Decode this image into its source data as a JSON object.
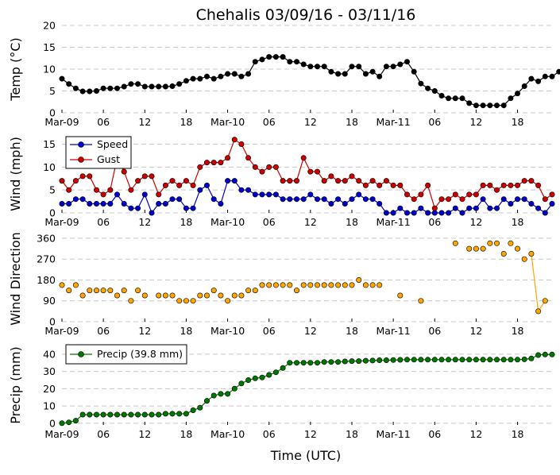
{
  "title": "Chehalis 03/09/16 - 03/11/16",
  "xlabel": "Time (UTC)",
  "x_tick_labels": [
    "Mar-09",
    "06",
    "12",
    "18",
    "Mar-10",
    "06",
    "12",
    "18",
    "Mar-11",
    "06",
    "12",
    "18"
  ],
  "colors": {
    "temp": "#000000",
    "speed": "#0000cc",
    "gust": "#cc0000",
    "direction_marker": "#ffa500",
    "direction_line": "#ffa500",
    "precip": "#007700",
    "grid": "#c8c8c8"
  },
  "chart_data": [
    {
      "type": "line",
      "ylabel": "Temp (°C)",
      "ylim": [
        0,
        20
      ],
      "yticks": [
        0,
        5,
        10,
        15,
        20
      ],
      "x_unit": "hours since Mar-09 00:00 UTC",
      "xlim": [
        0,
        71
      ],
      "grid": true,
      "series": [
        {
          "key": "temp",
          "values": [
            7.8,
            6.6,
            5.6,
            4.9,
            4.9,
            5.0,
            5.6,
            5.6,
            5.6,
            6.0,
            6.6,
            6.6,
            6.0,
            6.0,
            6.0,
            6.0,
            6.1,
            6.6,
            7.3,
            7.8,
            7.8,
            8.3,
            7.8,
            8.3,
            8.9,
            8.9,
            8.3,
            8.9,
            11.7,
            12.2,
            12.8,
            12.8,
            12.8,
            11.7,
            11.7,
            11.1,
            10.6,
            10.6,
            10.6,
            9.4,
            8.9,
            8.9,
            10.6,
            10.6,
            8.9,
            9.4,
            8.3,
            10.6,
            10.6,
            11.1,
            11.7,
            9.4,
            6.7,
            5.6,
            5.0,
            3.9,
            3.3,
            3.3,
            3.3,
            2.2,
            1.7,
            1.7,
            1.7,
            1.7,
            1.7,
            3.3,
            4.4,
            6.1,
            7.8,
            7.2,
            8.3,
            8.3,
            9.4
          ]
        }
      ]
    },
    {
      "type": "line",
      "ylabel": "Wind (mph)",
      "ylim": [
        0,
        17
      ],
      "yticks": [
        0,
        5,
        10,
        15
      ],
      "grid": true,
      "legend": {
        "placement": "top-left",
        "entries": [
          "Speed",
          "Gust"
        ]
      },
      "series": [
        {
          "key": "speed",
          "name": "Speed",
          "values": [
            2,
            2,
            3,
            3,
            2,
            2,
            2,
            2,
            4,
            2,
            1,
            1,
            4,
            0,
            2,
            2,
            3,
            3,
            1,
            1,
            5,
            6,
            3,
            2,
            7,
            7,
            5,
            5,
            4,
            4,
            4,
            4,
            3,
            3,
            3,
            3,
            4,
            3,
            3,
            2,
            3,
            2,
            3,
            4,
            3,
            3,
            2,
            0,
            0,
            1,
            0,
            0,
            1,
            0,
            0,
            0,
            0,
            1,
            0,
            1,
            1,
            3,
            1,
            1,
            3,
            2,
            3,
            3,
            2,
            1,
            0,
            2
          ]
        },
        {
          "key": "gust",
          "name": "Gust",
          "values": [
            7,
            5,
            7,
            8,
            8,
            5,
            4,
            5,
            12,
            9,
            5,
            7,
            8,
            8,
            4,
            6,
            7,
            6,
            7,
            6,
            10,
            11,
            11,
            11,
            12,
            16,
            15,
            12,
            10,
            9,
            10,
            10,
            7,
            7,
            7,
            12,
            9,
            9,
            7,
            8,
            7,
            7,
            8,
            7,
            6,
            7,
            6,
            7,
            6,
            6,
            4,
            3,
            4,
            6,
            1,
            3,
            3,
            4,
            3,
            4,
            4,
            6,
            6,
            5,
            6,
            6,
            6,
            7,
            7,
            6,
            3,
            4
          ]
        }
      ]
    },
    {
      "type": "scatter",
      "ylabel": "Wind Direction",
      "ylim": [
        0,
        370
      ],
      "yticks": [
        0,
        90,
        180,
        270,
        360
      ],
      "grid": true,
      "series": [
        {
          "key": "direction",
          "values": [
            158,
            135,
            158,
            113,
            135,
            135,
            135,
            135,
            113,
            135,
            90,
            135,
            113,
            null,
            113,
            113,
            113,
            90,
            90,
            90,
            113,
            113,
            135,
            113,
            90,
            113,
            113,
            135,
            135,
            158,
            158,
            158,
            158,
            158,
            135,
            158,
            158,
            158,
            158,
            158,
            158,
            158,
            158,
            180,
            158,
            158,
            158,
            null,
            null,
            113,
            null,
            null,
            90,
            null,
            null,
            null,
            null,
            338,
            null,
            315,
            315,
            315,
            338,
            338,
            293,
            338,
            315,
            270,
            293,
            45,
            90
          ],
          "line_segments": [
            [
              68,
              70
            ]
          ]
        }
      ]
    },
    {
      "type": "line",
      "ylabel": "Precip (mm)",
      "ylim": [
        -1,
        45
      ],
      "yticks": [
        0,
        10,
        20,
        30,
        40
      ],
      "grid": true,
      "legend": {
        "placement": "top-left",
        "entries": [
          "Precip (39.8 mm)"
        ]
      },
      "series": [
        {
          "key": "precip",
          "name": "Precip (39.8 mm)",
          "values": [
            0,
            0.5,
            1.5,
            5,
            5,
            5,
            5,
            5,
            5,
            5,
            5,
            5,
            5,
            5,
            5,
            5.5,
            5.5,
            5.5,
            5.5,
            7.5,
            9,
            13,
            16,
            17,
            17,
            20,
            23,
            25,
            26,
            26.5,
            28,
            29.5,
            32,
            35,
            35,
            35,
            35,
            35,
            35.5,
            35.5,
            35.5,
            35.8,
            36,
            36,
            36.2,
            36.3,
            36.5,
            36.5,
            36.6,
            36.7,
            36.8,
            36.8,
            36.8,
            36.8,
            36.8,
            36.8,
            36.8,
            36.8,
            36.8,
            36.8,
            36.8,
            36.8,
            36.8,
            36.8,
            36.8,
            36.8,
            36.8,
            37,
            37.5,
            39.5,
            39.8,
            39.8
          ]
        }
      ]
    }
  ]
}
